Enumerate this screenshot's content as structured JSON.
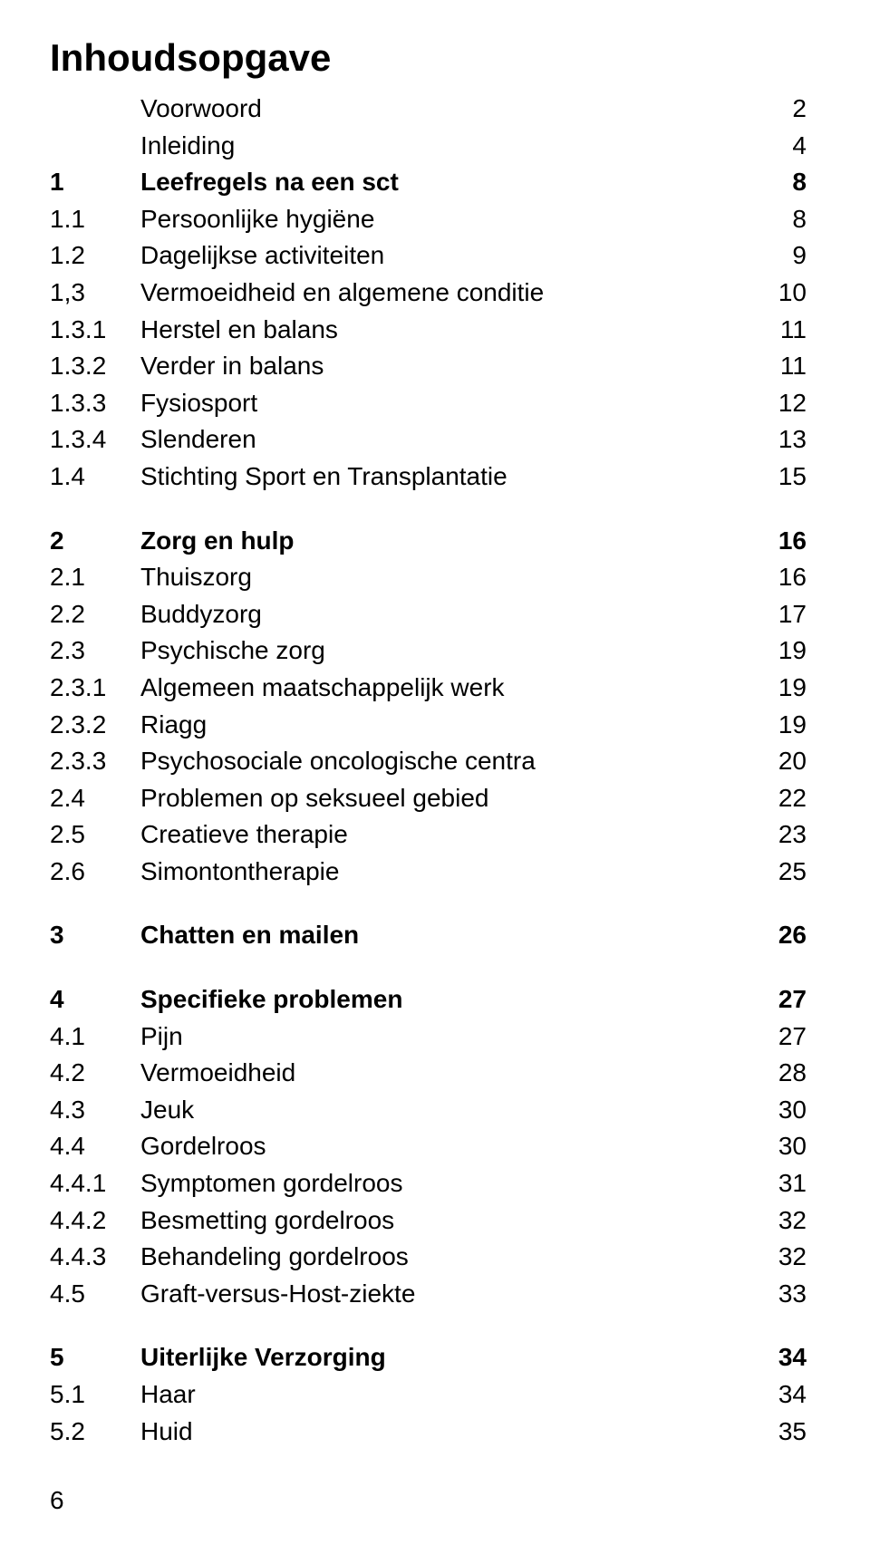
{
  "title": "Inhoudsopgave",
  "pageNumber": "6",
  "colors": {
    "background": "#ffffff",
    "text": "#000000"
  },
  "typography": {
    "titleFontSize": 42,
    "bodyFontSize": 28,
    "fontFamily": "Arial, Helvetica, sans-serif"
  },
  "sections": [
    {
      "rows": [
        {
          "num": "",
          "text": "Voorwoord",
          "page": "2",
          "bold": false
        },
        {
          "num": "",
          "text": "Inleiding",
          "page": "4",
          "bold": false
        },
        {
          "num": "1",
          "text": "Leefregels na een sct",
          "page": "8",
          "bold": true
        },
        {
          "num": "1.1",
          "text": "Persoonlijke hygiëne",
          "page": "8",
          "bold": false
        },
        {
          "num": "1.2",
          "text": "Dagelijkse activiteiten",
          "page": "9",
          "bold": false
        },
        {
          "num": "1,3",
          "text": "Vermoeidheid en algemene conditie",
          "page": "10",
          "bold": false
        },
        {
          "num": "1.3.1",
          "text": "Herstel en balans",
          "page": "11",
          "bold": false
        },
        {
          "num": "1.3.2",
          "text": "Verder in balans",
          "page": "11",
          "bold": false
        },
        {
          "num": "1.3.3",
          "text": "Fysiosport",
          "page": "12",
          "bold": false
        },
        {
          "num": "1.3.4",
          "text": "Slenderen",
          "page": "13",
          "bold": false
        },
        {
          "num": "1.4",
          "text": "Stichting Sport en Transplantatie",
          "page": "15",
          "bold": false
        }
      ]
    },
    {
      "rows": [
        {
          "num": "2",
          "text": "Zorg en hulp",
          "page": "16",
          "bold": true
        },
        {
          "num": "2.1",
          "text": "Thuiszorg",
          "page": "16",
          "bold": false
        },
        {
          "num": "2.2",
          "text": "Buddyzorg",
          "page": "17",
          "bold": false
        },
        {
          "num": "2.3",
          "text": "Psychische zorg",
          "page": "19",
          "bold": false
        },
        {
          "num": "2.3.1",
          "text": "Algemeen maatschappelijk werk",
          "page": "19",
          "bold": false
        },
        {
          "num": "2.3.2",
          "text": "Riagg",
          "page": "19",
          "bold": false
        },
        {
          "num": "2.3.3",
          "text": "Psychosociale oncologische centra",
          "page": "20",
          "bold": false
        },
        {
          "num": "2.4",
          "text": "Problemen op seksueel gebied",
          "page": "22",
          "bold": false
        },
        {
          "num": "2.5",
          "text": "Creatieve therapie",
          "page": "23",
          "bold": false
        },
        {
          "num": "2.6",
          "text": "Simontontherapie",
          "page": "25",
          "bold": false
        }
      ]
    },
    {
      "rows": [
        {
          "num": "3",
          "text": "Chatten en mailen",
          "page": "26",
          "bold": true
        }
      ]
    },
    {
      "rows": [
        {
          "num": "4",
          "text": "Specifieke problemen",
          "page": "27",
          "bold": true
        },
        {
          "num": "4.1",
          "text": "Pijn",
          "page": "27",
          "bold": false
        },
        {
          "num": "4.2",
          "text": "Vermoeidheid",
          "page": "28",
          "bold": false
        },
        {
          "num": "4.3",
          "text": "Jeuk",
          "page": "30",
          "bold": false
        },
        {
          "num": "4.4",
          "text": "Gordelroos",
          "page": "30",
          "bold": false
        },
        {
          "num": "4.4.1",
          "text": "Symptomen gordelroos",
          "page": "31",
          "bold": false
        },
        {
          "num": "4.4.2",
          "text": "Besmetting gordelroos",
          "page": "32",
          "bold": false
        },
        {
          "num": "4.4.3",
          "text": "Behandeling gordelroos",
          "page": "32",
          "bold": false
        },
        {
          "num": "4.5",
          "text": "Graft-versus-Host-ziekte",
          "page": "33",
          "bold": false
        }
      ]
    },
    {
      "rows": [
        {
          "num": "5",
          "text": "Uiterlijke Verzorging",
          "page": "34",
          "bold": true
        },
        {
          "num": "5.1",
          "text": "Haar",
          "page": "34",
          "bold": false
        },
        {
          "num": "5.2",
          "text": "Huid",
          "page": "35",
          "bold": false
        }
      ]
    }
  ]
}
